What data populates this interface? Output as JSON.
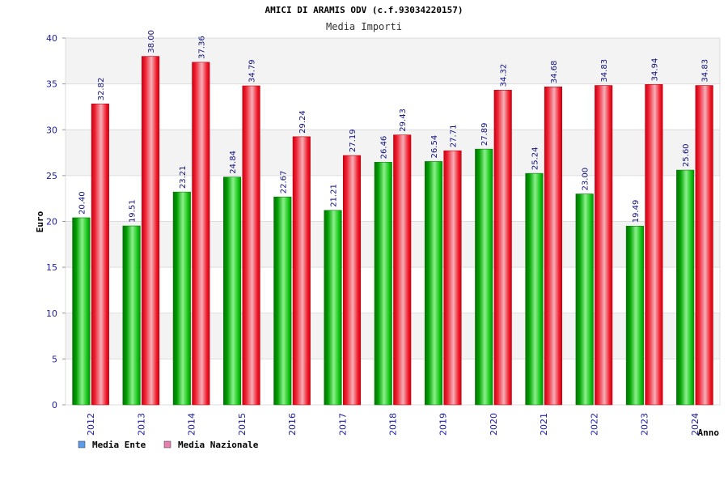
{
  "chart_data": {
    "type": "bar",
    "title": "AMICI DI ARAMIS ODV (c.f.93034220157)",
    "subtitle": "Media Importi",
    "xlabel": "Anno",
    "ylabel": "Euro",
    "ylim": [
      0,
      40
    ],
    "yticks": [
      0,
      5,
      10,
      15,
      20,
      25,
      30,
      35,
      40
    ],
    "grid": true,
    "legend_position": "bottom-left",
    "categories": [
      "2012",
      "2013",
      "2014",
      "2015",
      "2016",
      "2017",
      "2018",
      "2019",
      "2020",
      "2021",
      "2022",
      "2023",
      "2024"
    ],
    "series": [
      {
        "name": "Media Ente",
        "values": [
          20.4,
          19.51,
          23.21,
          24.84,
          22.67,
          21.21,
          26.46,
          26.54,
          27.89,
          25.24,
          23.0,
          19.49,
          25.6
        ],
        "labels": [
          "20.40",
          "19.51",
          "23.21",
          "24.84",
          "22.67",
          "21.21",
          "26.46",
          "26.54",
          "27.89",
          "25.24",
          "23.00",
          "19.49",
          "25.60"
        ],
        "color": "#10c010",
        "legend_color": "#5b9bea"
      },
      {
        "name": "Media Nazionale",
        "values": [
          32.82,
          38.0,
          37.36,
          34.79,
          29.24,
          27.19,
          29.43,
          27.71,
          34.32,
          34.68,
          34.83,
          34.94,
          34.83
        ],
        "labels": [
          "32.82",
          "38.00",
          "37.36",
          "34.79",
          "29.24",
          "27.19",
          "29.43",
          "27.71",
          "34.32",
          "34.68",
          "34.83",
          "34.94",
          "34.83"
        ],
        "color": "#ee1122",
        "legend_color": "#e77fb0"
      }
    ]
  }
}
